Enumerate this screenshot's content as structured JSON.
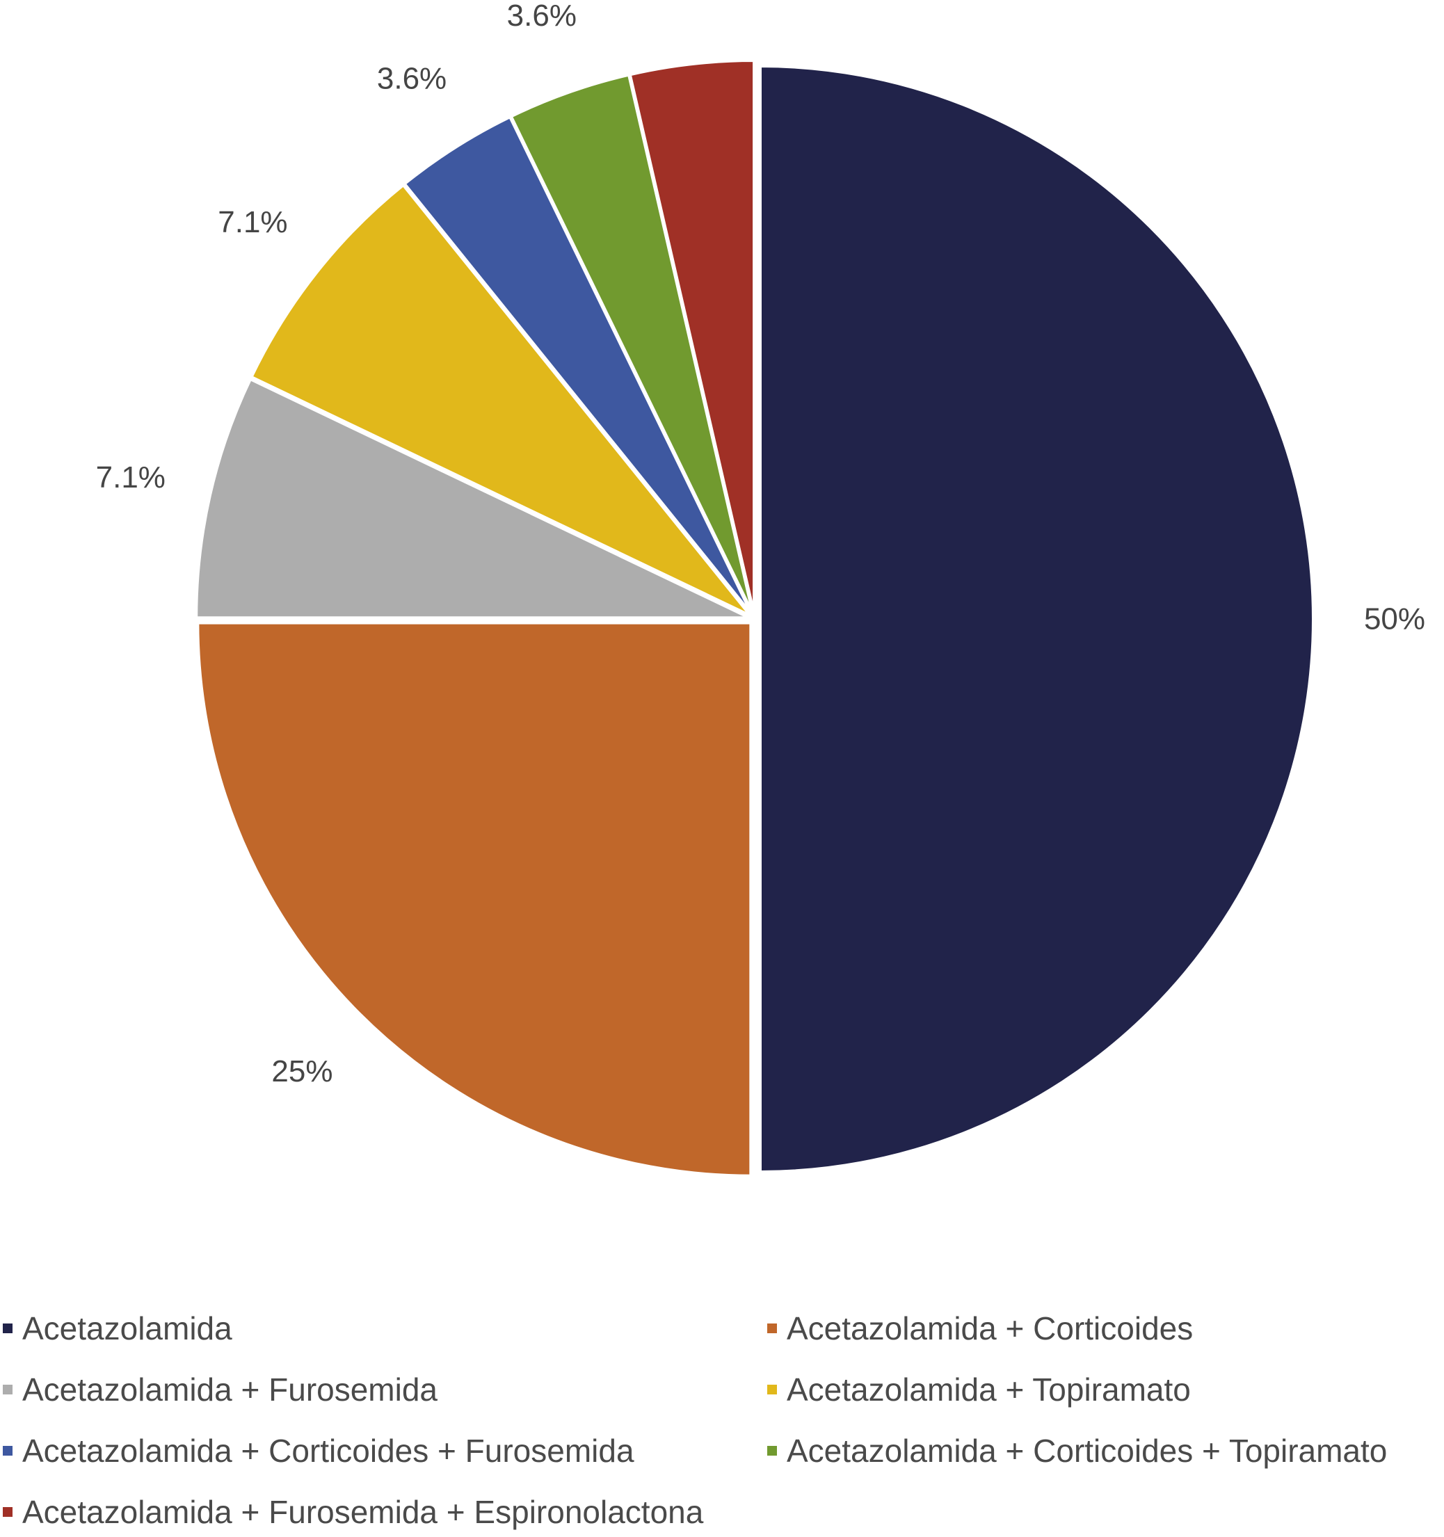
{
  "chart_data": {
    "type": "pie",
    "title": "",
    "legend_position": "bottom",
    "slices": [
      {
        "label": "Acetazolamida",
        "value": 50,
        "value_label": "50%",
        "color": "#21234a"
      },
      {
        "label": "Acetazolamida + Corticoides",
        "value": 25,
        "value_label": "25%",
        "color": "#c0672a"
      },
      {
        "label": "Acetazolamida + Furosemida",
        "value": 7.1,
        "value_label": "7.1%",
        "color": "#adadad"
      },
      {
        "label": "Acetazolamida + Topiramato",
        "value": 7.1,
        "value_label": "7.1%",
        "color": "#e1b81b"
      },
      {
        "label": "Acetazolamida + Corticoides + Furosemida",
        "value": 3.6,
        "value_label": "3.6%",
        "color": "#3e58a0"
      },
      {
        "label": "Acetazolamida + Corticoides + Topiramato",
        "value": 3.6,
        "value_label": "3.6%",
        "color": "#719a2f"
      },
      {
        "label": "Acetazolamida + Furosemida + Espironolactona",
        "value": 3.6,
        "value_label": "3.6%",
        "color": "#a03026"
      }
    ]
  }
}
